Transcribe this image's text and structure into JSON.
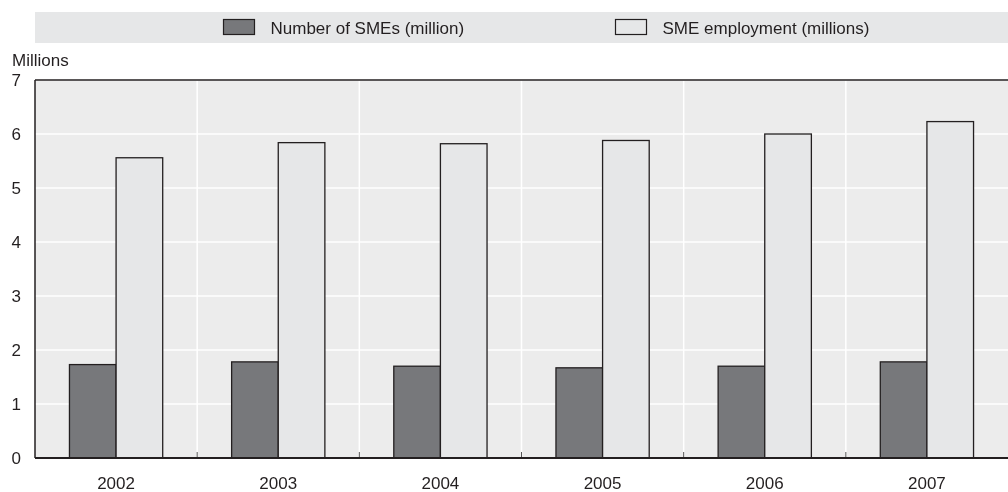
{
  "chart_data": {
    "type": "bar",
    "ylabel": "Millions",
    "categories": [
      "2002",
      "2003",
      "2004",
      "2005",
      "2006",
      "2007"
    ],
    "series": [
      {
        "name": "Number of SMEs (million)",
        "color": "#77787b",
        "values": [
          1.73,
          1.78,
          1.7,
          1.67,
          1.7,
          1.78
        ]
      },
      {
        "name": "SME employment (millions)",
        "color": "#e6e7e8",
        "values": [
          5.56,
          5.84,
          5.82,
          5.88,
          6.0,
          6.23
        ]
      }
    ],
    "ylim": [
      0,
      7
    ],
    "yticks": [
      0,
      1,
      2,
      3,
      4,
      5,
      6,
      7
    ],
    "grid": true,
    "legend": "top"
  }
}
